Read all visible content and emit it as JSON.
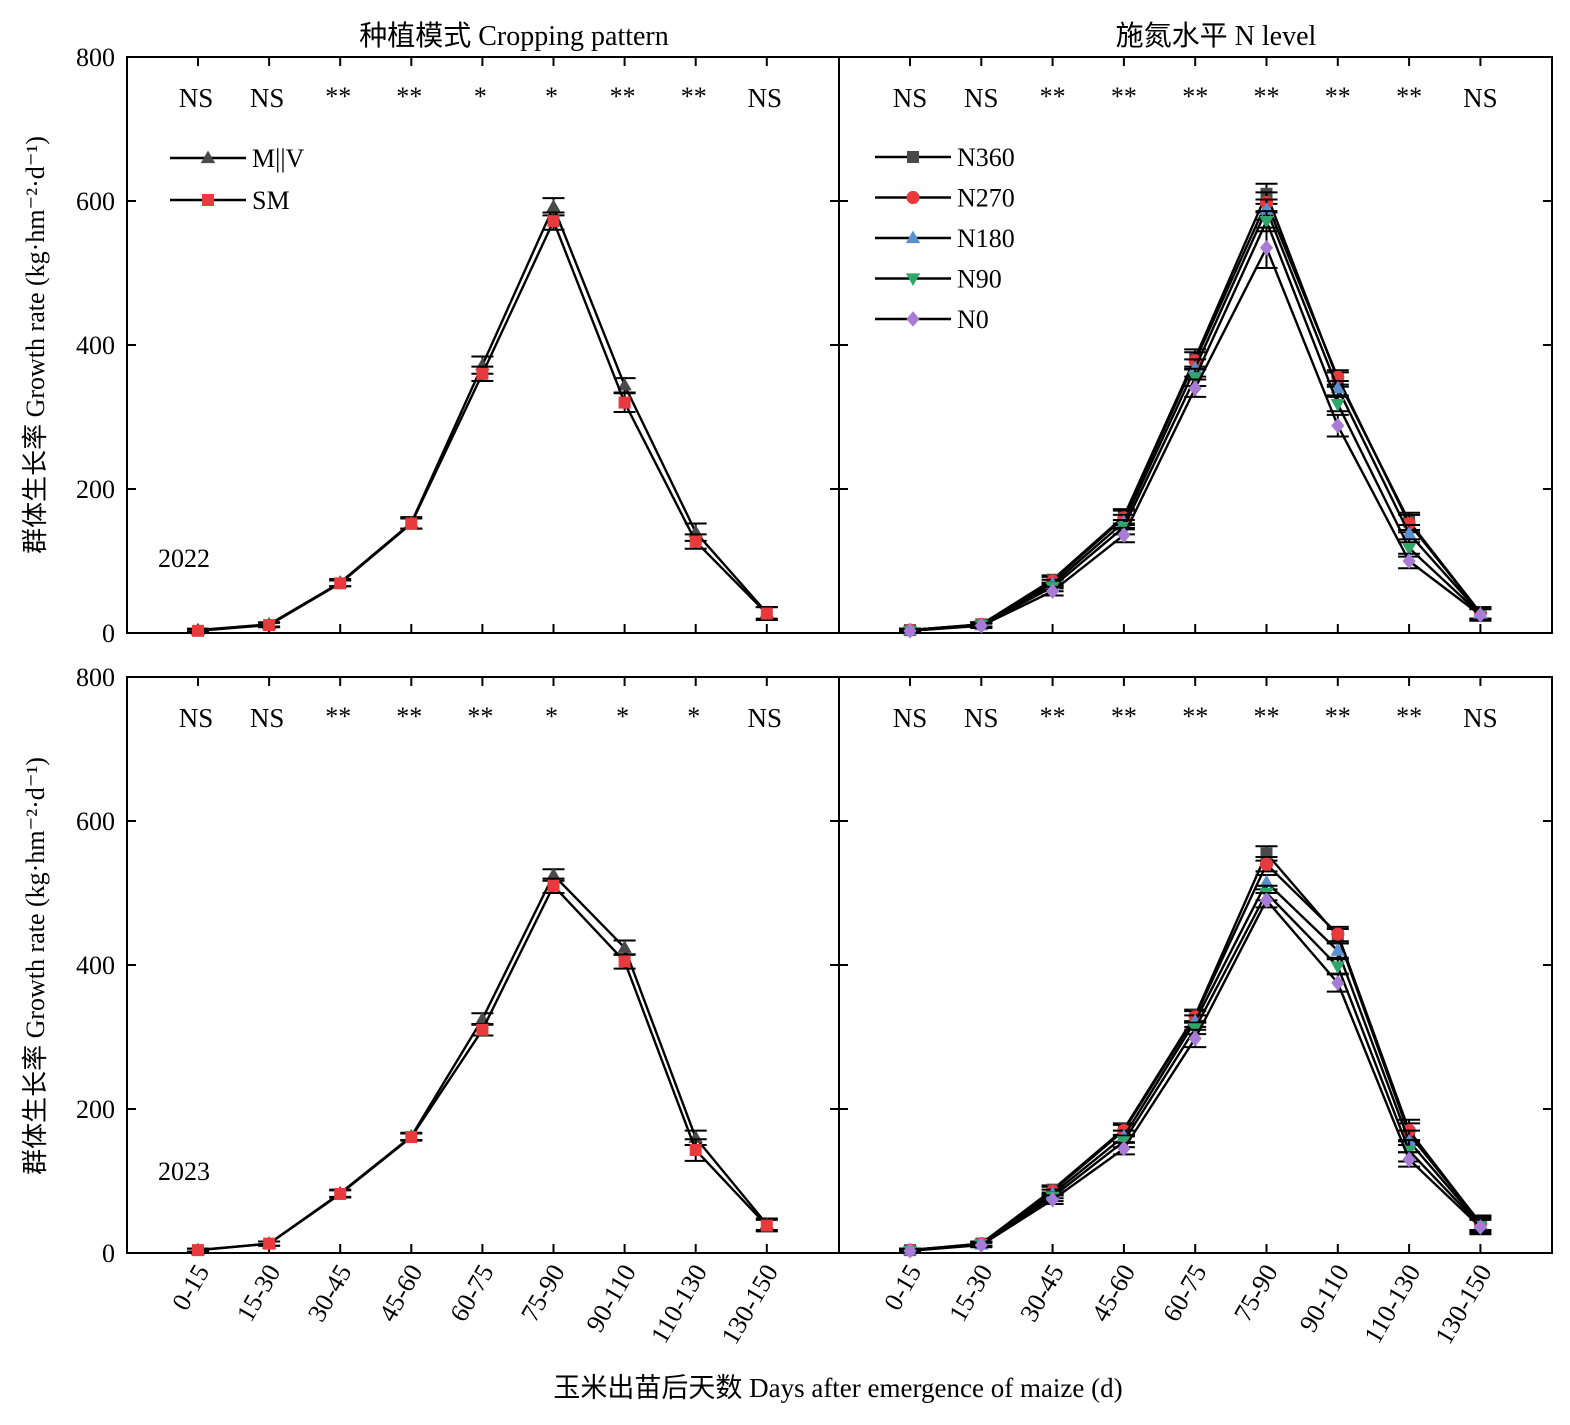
{
  "figure": {
    "col_titles": [
      "种植模式 Cropping pattern",
      "施氮水平 N level"
    ],
    "row_ylabel": "群体生长率 Growth rate (kg·hm⁻²·d⁻¹)",
    "xlabel": "玉米出苗后天数 Days after emergence of maize (d)",
    "year_labels": [
      "2022",
      "2023"
    ]
  },
  "chart_data": [
    {
      "type": "line",
      "panel": "2022 cropping pattern",
      "title": "种植模式 Cropping pattern",
      "year": "2022",
      "categories": [
        "0-15",
        "15-30",
        "30-45",
        "45-60",
        "60-75",
        "75-90",
        "90-110",
        "110-130",
        "130-150"
      ],
      "ylim": [
        0,
        800
      ],
      "yticks": [
        0,
        200,
        400,
        600,
        800
      ],
      "significance": [
        "NS",
        "NS",
        "**",
        "**",
        "*",
        "*",
        "**",
        "**",
        "NS"
      ],
      "legend_position": "top-left",
      "series": [
        {
          "name": "M||V",
          "marker": "triangle-up",
          "color": "#4a4a4a",
          "values": [
            4,
            12,
            70,
            153,
            372,
            592,
            344,
            140,
            28
          ],
          "errors": [
            2,
            3,
            5,
            8,
            12,
            12,
            10,
            12,
            8
          ]
        },
        {
          "name": "SM",
          "marker": "square",
          "color": "#e8393c",
          "values": [
            3,
            11,
            69,
            152,
            360,
            572,
            320,
            127,
            27
          ],
          "errors": [
            2,
            3,
            4,
            7,
            10,
            12,
            13,
            10,
            9
          ]
        }
      ]
    },
    {
      "type": "line",
      "panel": "2022 N level",
      "title": "施氮水平 N level",
      "year": "2022",
      "categories": [
        "0-15",
        "15-30",
        "30-45",
        "45-60",
        "60-75",
        "75-90",
        "90-110",
        "110-130",
        "130-150"
      ],
      "ylim": [
        0,
        800
      ],
      "yticks": [
        0,
        200,
        400,
        600,
        800
      ],
      "significance": [
        "NS",
        "NS",
        "**",
        "**",
        "**",
        "**",
        "**",
        "**",
        "NS"
      ],
      "legend_position": "top-left",
      "series": [
        {
          "name": "N360",
          "marker": "square",
          "color": "#4a4a4a",
          "values": [
            4,
            12,
            74,
            162,
            382,
            610,
            352,
            155,
            28
          ],
          "errors": [
            2,
            3,
            6,
            10,
            12,
            14,
            10,
            12,
            8
          ]
        },
        {
          "name": "N270",
          "marker": "circle",
          "color": "#e8393c",
          "values": [
            4,
            12,
            72,
            160,
            378,
            598,
            355,
            152,
            28
          ],
          "errors": [
            2,
            3,
            6,
            10,
            12,
            14,
            10,
            12,
            8
          ]
        },
        {
          "name": "N180",
          "marker": "triangle-up",
          "color": "#5b8fd0",
          "values": [
            4,
            11,
            68,
            154,
            368,
            588,
            340,
            138,
            27
          ],
          "errors": [
            2,
            3,
            6,
            10,
            12,
            14,
            10,
            12,
            8
          ]
        },
        {
          "name": "N90",
          "marker": "triangle-down",
          "color": "#2ea86a",
          "values": [
            3,
            11,
            64,
            147,
            355,
            572,
            318,
            118,
            26
          ],
          "errors": [
            2,
            3,
            6,
            10,
            12,
            14,
            10,
            12,
            8
          ]
        },
        {
          "name": "N0",
          "marker": "diamond",
          "color": "#a87bd6",
          "values": [
            3,
            10,
            58,
            136,
            340,
            535,
            288,
            100,
            25
          ],
          "errors": [
            2,
            3,
            6,
            10,
            12,
            28,
            15,
            10,
            8
          ]
        }
      ]
    },
    {
      "type": "line",
      "panel": "2023 cropping pattern",
      "title": "",
      "year": "2023",
      "categories": [
        "0-15",
        "15-30",
        "30-45",
        "45-60",
        "60-75",
        "75-90",
        "90-110",
        "110-130",
        "130-150"
      ],
      "ylim": [
        0,
        800
      ],
      "yticks": [
        0,
        200,
        400,
        600,
        800
      ],
      "significance": [
        "NS",
        "NS",
        "**",
        "**",
        "**",
        "*",
        "*",
        "*",
        "NS"
      ],
      "legend_position": "none",
      "series": [
        {
          "name": "M||V",
          "marker": "triangle-up",
          "color": "#4a4a4a",
          "values": [
            4,
            13,
            83,
            162,
            325,
            525,
            424,
            160,
            40
          ],
          "errors": [
            2,
            3,
            5,
            5,
            8,
            8,
            10,
            10,
            8
          ]
        },
        {
          "name": "SM",
          "marker": "square",
          "color": "#e8393c",
          "values": [
            4,
            13,
            82,
            161,
            310,
            510,
            405,
            143,
            38
          ],
          "errors": [
            2,
            3,
            5,
            5,
            8,
            10,
            10,
            15,
            8
          ]
        }
      ]
    },
    {
      "type": "line",
      "panel": "2023 N level",
      "title": "",
      "year": "2023",
      "categories": [
        "0-15",
        "15-30",
        "30-45",
        "45-60",
        "60-75",
        "75-90",
        "90-110",
        "110-130",
        "130-150"
      ],
      "ylim": [
        0,
        800
      ],
      "yticks": [
        0,
        200,
        400,
        600,
        800
      ],
      "significance": [
        "NS",
        "NS",
        "**",
        "**",
        "**",
        "**",
        "**",
        "**",
        "NS"
      ],
      "legend_position": "none",
      "series": [
        {
          "name": "N360",
          "marker": "square",
          "color": "#4a4a4a",
          "values": [
            4,
            13,
            88,
            172,
            330,
            555,
            440,
            165,
            42
          ],
          "errors": [
            2,
            3,
            6,
            8,
            8,
            10,
            10,
            15,
            10
          ]
        },
        {
          "name": "N270",
          "marker": "circle",
          "color": "#e8393c",
          "values": [
            4,
            13,
            86,
            170,
            328,
            540,
            443,
            170,
            41
          ],
          "errors": [
            2,
            3,
            6,
            8,
            8,
            10,
            10,
            15,
            10
          ]
        },
        {
          "name": "N180",
          "marker": "triangle-up",
          "color": "#5b8fd0",
          "values": [
            4,
            12,
            82,
            162,
            322,
            515,
            420,
            155,
            40
          ],
          "errors": [
            2,
            3,
            6,
            8,
            8,
            10,
            10,
            15,
            10
          ]
        },
        {
          "name": "N90",
          "marker": "triangle-down",
          "color": "#2ea86a",
          "values": [
            3,
            12,
            78,
            155,
            312,
            500,
            398,
            142,
            38
          ],
          "errors": [
            2,
            3,
            6,
            8,
            8,
            10,
            10,
            15,
            10
          ]
        },
        {
          "name": "N0",
          "marker": "diamond",
          "color": "#a87bd6",
          "values": [
            3,
            11,
            74,
            145,
            298,
            490,
            375,
            130,
            36
          ],
          "errors": [
            2,
            3,
            6,
            8,
            12,
            10,
            12,
            10,
            10
          ]
        }
      ]
    }
  ]
}
